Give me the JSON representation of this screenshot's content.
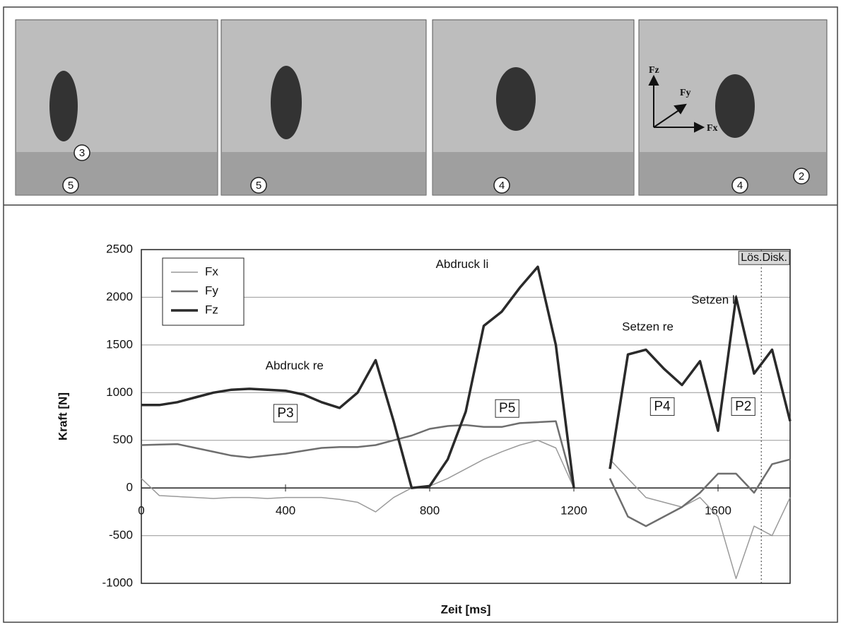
{
  "photos": [
    {
      "markers": [
        "3",
        "5"
      ]
    },
    {
      "markers": [
        "5"
      ]
    },
    {
      "markers": [
        "4"
      ]
    },
    {
      "markers": [
        "4",
        "2"
      ],
      "axes": [
        "Fz",
        "Fy",
        "Fx"
      ]
    }
  ],
  "chart_data": {
    "type": "line",
    "xlabel": "Zeit [ms]",
    "ylabel": "Kraft [N]",
    "x": [
      0,
      50,
      100,
      150,
      200,
      250,
      300,
      350,
      400,
      450,
      500,
      550,
      600,
      650,
      700,
      750,
      800,
      850,
      900,
      950,
      1000,
      1050,
      1100,
      1150,
      1200,
      1250,
      1300,
      1350,
      1400,
      1450,
      1500,
      1550,
      1600,
      1650,
      1700,
      1750,
      1800
    ],
    "series": [
      {
        "name": "Fx",
        "color": "#9a9a9a",
        "width": 1.5,
        "values": [
          100,
          -80,
          -90,
          -100,
          -110,
          -100,
          -100,
          -110,
          -100,
          -100,
          -100,
          -120,
          -150,
          -250,
          -100,
          0,
          20,
          100,
          200,
          300,
          380,
          450,
          500,
          420,
          0,
          null,
          300,
          100,
          -100,
          -150,
          -200,
          -100,
          -300,
          -950,
          -400,
          -500,
          -100
        ]
      },
      {
        "name": "Fy",
        "color": "#6e6e6e",
        "width": 2.5,
        "values": [
          450,
          455,
          460,
          420,
          380,
          340,
          320,
          340,
          360,
          390,
          420,
          430,
          430,
          450,
          500,
          550,
          620,
          650,
          660,
          640,
          640,
          680,
          690,
          700,
          0,
          null,
          100,
          -300,
          -400,
          -300,
          -200,
          -50,
          150,
          150,
          -50,
          250,
          300
        ]
      },
      {
        "name": "Fz",
        "color": "#2a2a2a",
        "width": 3.5,
        "values": [
          870,
          870,
          900,
          950,
          1000,
          1030,
          1040,
          1030,
          1020,
          980,
          900,
          840,
          1000,
          1340,
          700,
          0,
          20,
          300,
          800,
          1700,
          1850,
          2100,
          2320,
          1500,
          0,
          null,
          200,
          1400,
          1450,
          1250,
          1080,
          1330,
          600,
          2000,
          1200,
          1450,
          700
        ]
      }
    ],
    "xlim": [
      0,
      1800
    ],
    "xticks": [
      0,
      400,
      800,
      1200,
      1600
    ],
    "ylim": [
      -1000,
      2500
    ],
    "yticks": [
      -1000,
      -500,
      0,
      500,
      1000,
      1500,
      2000,
      2500
    ],
    "grid": true,
    "legend": "upper left",
    "annotations": [
      {
        "text": "Abdruck re",
        "x": 425,
        "y": 1275
      },
      {
        "text": "Abdruck li",
        "x": 890,
        "y": 2340
      },
      {
        "text": "Setzen re",
        "x": 1405,
        "y": 1685
      },
      {
        "text": "Setzen li",
        "x": 1590,
        "y": 1965
      },
      {
        "text": "P3",
        "x": 400,
        "y": 780,
        "boxed": true
      },
      {
        "text": "P5",
        "x": 1015,
        "y": 830,
        "boxed": true
      },
      {
        "text": "P4",
        "x": 1445,
        "y": 850,
        "boxed": true
      },
      {
        "text": "P2",
        "x": 1670,
        "y": 850,
        "boxed": true
      }
    ],
    "event_line": {
      "text": "Lös.Disk.",
      "x": 1720
    }
  }
}
